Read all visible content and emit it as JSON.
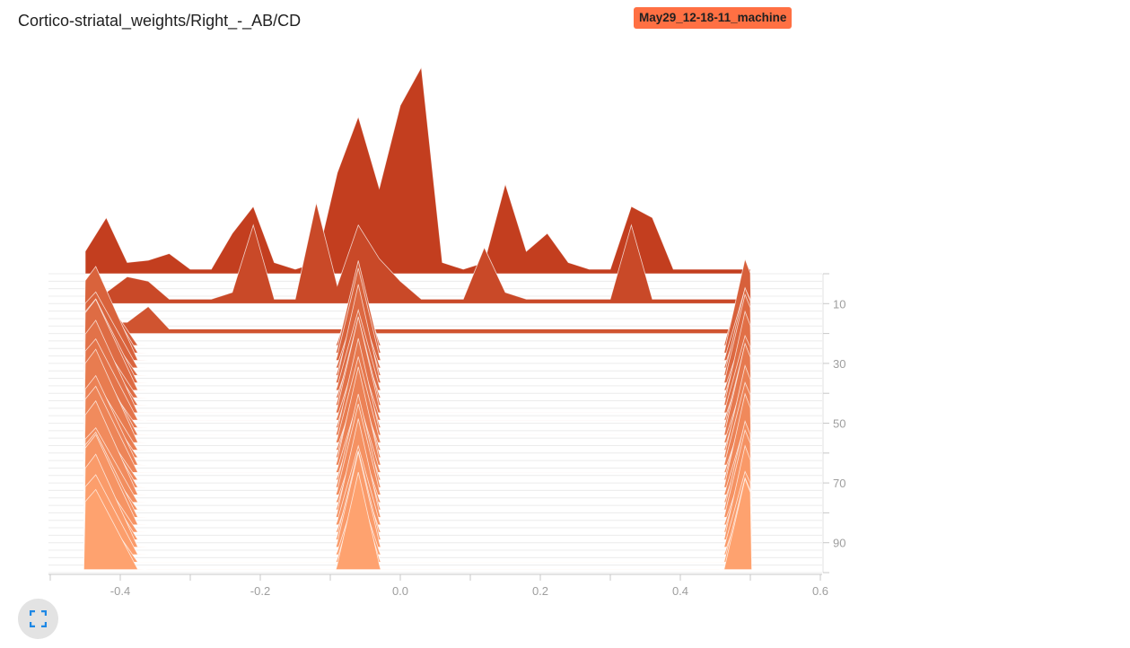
{
  "header": {
    "title": "Cortico-striatal_weights/Right_-_AB/CD",
    "run_tag": "May29_12-18-11_machine"
  },
  "controls": {
    "fullscreen_icon": "fullscreen-icon"
  },
  "colors": {
    "accent": "#ff7043",
    "back": "#c0391b",
    "front": "#ffa370"
  },
  "chart_data": {
    "type": "histogram-ridge",
    "title": "Cortico-striatal_weights/Right_-_AB/CD",
    "x_ticks": [
      "-0.4",
      "-0.2",
      "0.0",
      "0.2",
      "0.4",
      "0.6"
    ],
    "x_tick_values": [
      -0.4,
      -0.2,
      0,
      0.2,
      0.4,
      0.6
    ],
    "y_ticks": [
      "10",
      "30",
      "50",
      "70",
      "90"
    ],
    "y_tick_values": [
      10,
      30,
      50,
      70,
      90
    ],
    "xlim": [
      -0.5,
      0.6
    ],
    "steps": [
      0,
      100
    ],
    "back_histograms": [
      {
        "step": 0,
        "x": [
          -0.45,
          -0.42,
          -0.39,
          -0.36,
          -0.33,
          -0.3,
          -0.27,
          -0.24,
          -0.21,
          -0.18,
          -0.15,
          -0.12,
          -0.09,
          -0.06,
          -0.03,
          0.0,
          0.03,
          0.06,
          0.09,
          0.12,
          0.15,
          0.18,
          0.21,
          0.24,
          0.27,
          0.3,
          0.33,
          0.36,
          0.39,
          0.42,
          0.45,
          0.48,
          0.5
        ],
        "y": [
          0.1,
          0.25,
          0.05,
          0.06,
          0.09,
          0.02,
          0.02,
          0.18,
          0.3,
          0.05,
          0.02,
          0.05,
          0.45,
          0.7,
          0.38,
          0.75,
          0.92,
          0.05,
          0.02,
          0.05,
          0.4,
          0.1,
          0.18,
          0.05,
          0.02,
          0.02,
          0.3,
          0.25,
          0.02,
          0.02,
          0.02,
          0.02,
          0.02
        ]
      },
      {
        "step": 10,
        "x": [
          -0.45,
          -0.42,
          -0.39,
          -0.36,
          -0.33,
          -0.3,
          -0.27,
          -0.24,
          -0.21,
          -0.18,
          -0.15,
          -0.12,
          -0.09,
          -0.06,
          -0.03,
          0.0,
          0.03,
          0.06,
          0.09,
          0.12,
          0.15,
          0.18,
          0.21,
          0.24,
          0.27,
          0.3,
          0.33,
          0.36,
          0.39,
          0.42,
          0.45,
          0.48,
          0.5
        ],
        "y": [
          0.05,
          0.05,
          0.12,
          0.1,
          0.02,
          0.02,
          0.02,
          0.05,
          0.35,
          0.02,
          0.02,
          0.45,
          0.08,
          0.35,
          0.2,
          0.1,
          0.02,
          0.02,
          0.02,
          0.25,
          0.05,
          0.02,
          0.02,
          0.02,
          0.02,
          0.02,
          0.35,
          0.02,
          0.02,
          0.02,
          0.02,
          0.02,
          0.02
        ]
      },
      {
        "step": 20,
        "x": [
          -0.45,
          -0.42,
          -0.39,
          -0.36,
          -0.33,
          -0.3,
          -0.27,
          -0.24,
          -0.21,
          -0.18,
          -0.15,
          -0.12,
          -0.09,
          -0.06,
          -0.03,
          0.0,
          0.03,
          0.06,
          0.09,
          0.12,
          0.15,
          0.18,
          0.21,
          0.24,
          0.27,
          0.3,
          0.33,
          0.36,
          0.39,
          0.42,
          0.45,
          0.48,
          0.5
        ],
        "y": [
          0.05,
          0.05,
          0.05,
          0.12,
          0.02,
          0.02,
          0.02,
          0.02,
          0.02,
          0.02,
          0.02,
          0.02,
          0.02,
          0.02,
          0.02,
          0.02,
          0.02,
          0.02,
          0.02,
          0.02,
          0.02,
          0.02,
          0.02,
          0.02,
          0.02,
          0.02,
          0.02,
          0.02,
          0.02,
          0.02,
          0.02,
          0.02,
          0.02
        ]
      }
    ]
  }
}
